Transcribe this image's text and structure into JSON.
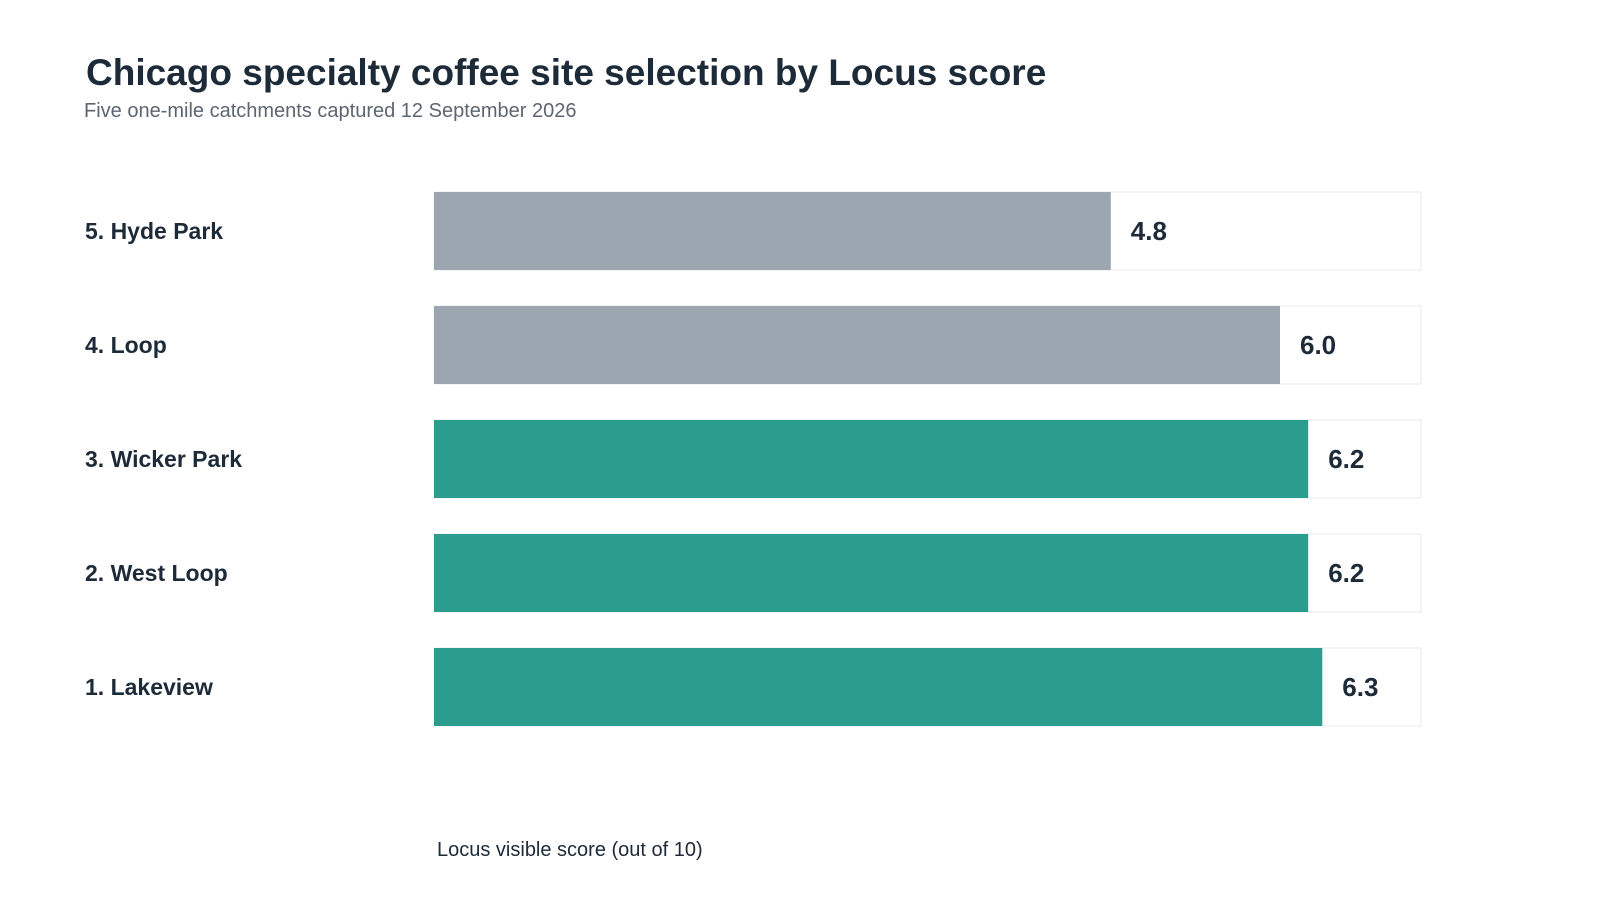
{
  "chart_data": {
    "type": "bar",
    "orientation": "horizontal",
    "title": "Chicago specialty coffee site selection by Locus score",
    "subtitle": "Five one-mile catchments captured 12 September 2026",
    "xlabel": "Locus visible score (out of 10)",
    "ylabel": "",
    "xlim": [
      0,
      7
    ],
    "grid": false,
    "legend": "none",
    "categories": [
      "5. Hyde Park",
      "4. Loop",
      "3. Wicker Park",
      "2. West Loop",
      "1. Lakeview"
    ],
    "values": [
      4.8,
      6.0,
      6.2,
      6.2,
      6.3
    ],
    "value_labels": [
      "4.8",
      "6.0",
      "6.2",
      "6.2",
      "6.3"
    ],
    "bar_colors": [
      "#9ba6b1",
      "#9ba6b1",
      "#2a9d8f",
      "#2a9d8f",
      "#2a9d8f"
    ],
    "track_color": "#ffffff",
    "track_border_color": "#e6e9ec"
  }
}
